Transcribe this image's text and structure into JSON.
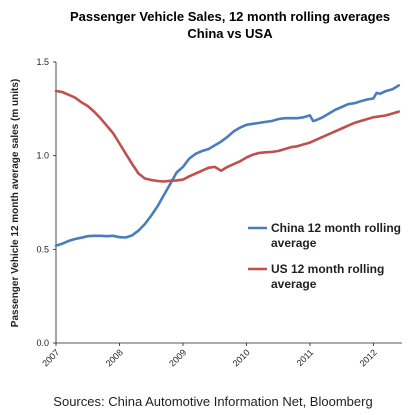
{
  "chart_data": {
    "type": "line",
    "title": "Passenger Vehicle Sales, 12 month rolling averages",
    "subtitle": "China vs USA",
    "ylabel": "Passenger Vehicle 12 month average sales (m units)",
    "xlabel": "",
    "ylim": [
      0.0,
      1.5
    ],
    "xlim": [
      2007.0,
      2012.45
    ],
    "yticks": [
      {
        "value": 0.0,
        "label": "0.0"
      },
      {
        "value": 0.5,
        "label": "0.5"
      },
      {
        "value": 1.0,
        "label": "1.0"
      },
      {
        "value": 1.5,
        "label": "1.5"
      }
    ],
    "xticks": [
      {
        "value": 2007,
        "label": "2007"
      },
      {
        "value": 2008,
        "label": "2008"
      },
      {
        "value": 2009,
        "label": "2009"
      },
      {
        "value": 2010,
        "label": "2010"
      },
      {
        "value": 2011,
        "label": "2011"
      },
      {
        "value": 2012,
        "label": "2012"
      }
    ],
    "grid": false,
    "legend_position": "right",
    "series": [
      {
        "name": "China 12 month rolling average",
        "legend_lines": [
          "China 12 month rolling",
          "average"
        ],
        "color": "#4a7ebb",
        "x": [
          2007.0,
          2007.1,
          2007.2,
          2007.3,
          2007.4,
          2007.5,
          2007.6,
          2007.7,
          2007.8,
          2007.9,
          2008.0,
          2008.1,
          2008.2,
          2008.3,
          2008.4,
          2008.5,
          2008.6,
          2008.7,
          2008.8,
          2008.9,
          2009.0,
          2009.1,
          2009.2,
          2009.3,
          2009.4,
          2009.5,
          2009.6,
          2009.7,
          2009.8,
          2009.9,
          2010.0,
          2010.1,
          2010.2,
          2010.3,
          2010.4,
          2010.5,
          2010.6,
          2010.7,
          2010.8,
          2010.9,
          2011.0,
          2011.05,
          2011.1,
          2011.2,
          2011.3,
          2011.4,
          2011.5,
          2011.6,
          2011.7,
          2011.8,
          2011.9,
          2012.0,
          2012.05,
          2012.1,
          2012.2,
          2012.3,
          2012.4
        ],
        "values": [
          0.52,
          0.53,
          0.545,
          0.555,
          0.562,
          0.57,
          0.572,
          0.572,
          0.57,
          0.572,
          0.565,
          0.563,
          0.575,
          0.6,
          0.635,
          0.68,
          0.73,
          0.79,
          0.85,
          0.91,
          0.94,
          0.985,
          1.01,
          1.025,
          1.035,
          1.055,
          1.075,
          1.1,
          1.13,
          1.15,
          1.165,
          1.17,
          1.175,
          1.18,
          1.185,
          1.195,
          1.2,
          1.2,
          1.2,
          1.205,
          1.215,
          1.185,
          1.19,
          1.205,
          1.225,
          1.245,
          1.26,
          1.275,
          1.28,
          1.29,
          1.3,
          1.305,
          1.335,
          1.33,
          1.345,
          1.355,
          1.375
        ]
      },
      {
        "name": "US 12 month rolling average",
        "legend_lines": [
          "US 12 month rolling",
          "average"
        ],
        "color": "#c0504d",
        "x": [
          2007.0,
          2007.1,
          2007.2,
          2007.3,
          2007.4,
          2007.5,
          2007.6,
          2007.7,
          2007.8,
          2007.9,
          2008.0,
          2008.1,
          2008.2,
          2008.3,
          2008.4,
          2008.5,
          2008.6,
          2008.7,
          2008.8,
          2008.9,
          2009.0,
          2009.1,
          2009.2,
          2009.3,
          2009.4,
          2009.5,
          2009.6,
          2009.7,
          2009.8,
          2009.9,
          2010.0,
          2010.1,
          2010.2,
          2010.3,
          2010.4,
          2010.5,
          2010.6,
          2010.7,
          2010.8,
          2010.9,
          2011.0,
          2011.1,
          2011.2,
          2011.3,
          2011.4,
          2011.5,
          2011.6,
          2011.7,
          2011.8,
          2011.9,
          2012.0,
          2012.1,
          2012.2,
          2012.3,
          2012.4
        ],
        "values": [
          1.345,
          1.34,
          1.325,
          1.31,
          1.285,
          1.265,
          1.235,
          1.2,
          1.16,
          1.12,
          1.065,
          1.01,
          0.955,
          0.905,
          0.878,
          0.87,
          0.865,
          0.862,
          0.866,
          0.868,
          0.872,
          0.89,
          0.905,
          0.92,
          0.935,
          0.94,
          0.92,
          0.94,
          0.955,
          0.97,
          0.99,
          1.005,
          1.015,
          1.018,
          1.02,
          1.025,
          1.035,
          1.045,
          1.05,
          1.06,
          1.07,
          1.085,
          1.1,
          1.115,
          1.13,
          1.145,
          1.16,
          1.175,
          1.185,
          1.195,
          1.205,
          1.21,
          1.215,
          1.225,
          1.235
        ]
      }
    ]
  },
  "source": "Sources: China Automotive Information Net, Bloomberg"
}
